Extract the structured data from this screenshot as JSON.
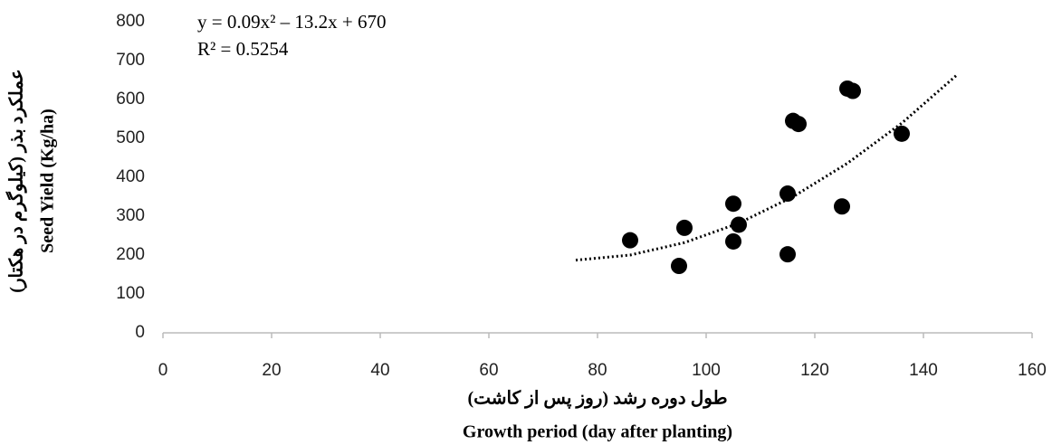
{
  "chart_data": {
    "type": "scatter",
    "x_label": [
      "طول دوره رشد (روز پس از کاشت)",
      "Growth period (day after planting)"
    ],
    "y_label": [
      "عملکرد بذر (کیلوگرم در هکتار)",
      "Seed Yield (Kg/ha)"
    ],
    "annotations": [
      "y = 0.09x² – 13.2x + 670",
      "R² = 0.5254"
    ],
    "series": [
      {
        "color": "#000000",
        "x": [
          86,
          95,
          96,
          105,
          105,
          106,
          115,
          115,
          116,
          117,
          125,
          126,
          127,
          136
        ],
        "values": [
          238,
          172,
          270,
          332,
          235,
          278,
          358,
          202,
          545,
          537,
          325,
          628,
          622,
          512
        ]
      }
    ],
    "trendline": {
      "color": "#000000",
      "x": [
        76,
        86,
        96,
        106,
        116,
        126,
        136,
        146
      ],
      "values": [
        187,
        200,
        232,
        282,
        350,
        436,
        539,
        661
      ]
    },
    "xlim": [
      0,
      160
    ],
    "xticks": [
      0,
      20,
      40,
      60,
      80,
      100,
      120,
      140,
      160
    ],
    "ylim": [
      0,
      800
    ],
    "yticks": [
      0,
      100,
      200,
      300,
      400,
      500,
      600,
      700,
      800
    ],
    "grid": false
  }
}
